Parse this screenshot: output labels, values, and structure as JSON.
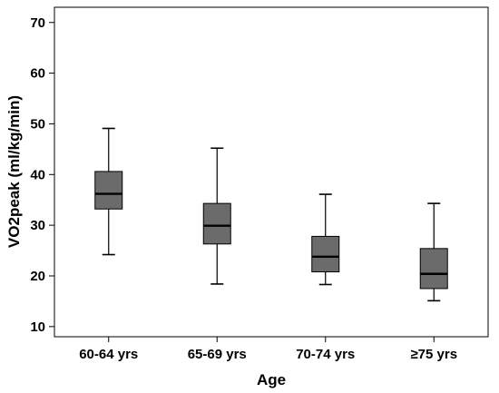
{
  "chart_data": {
    "type": "boxplot",
    "xlabel": "Age",
    "ylabel": "VO2peak (ml/kg/min)",
    "ylim": [
      8,
      73
    ],
    "yticks": [
      10,
      20,
      30,
      40,
      50,
      60,
      70
    ],
    "categories": [
      "60-64 yrs",
      "65-69 yrs",
      "70-74 yrs",
      "≥75 yrs"
    ],
    "boxes": [
      {
        "min": 24.2,
        "q1": 33.2,
        "median": 36.2,
        "q3": 40.6,
        "max": 49.1
      },
      {
        "min": 18.4,
        "q1": 26.3,
        "median": 29.9,
        "q3": 34.3,
        "max": 45.2
      },
      {
        "min": 18.3,
        "q1": 20.8,
        "median": 23.8,
        "q3": 27.8,
        "max": 36.1
      },
      {
        "min": 15.1,
        "q1": 17.5,
        "median": 20.4,
        "q3": 25.4,
        "max": 34.3
      }
    ],
    "box_color": "#6b6b6b",
    "grid": false,
    "legend": "none"
  }
}
